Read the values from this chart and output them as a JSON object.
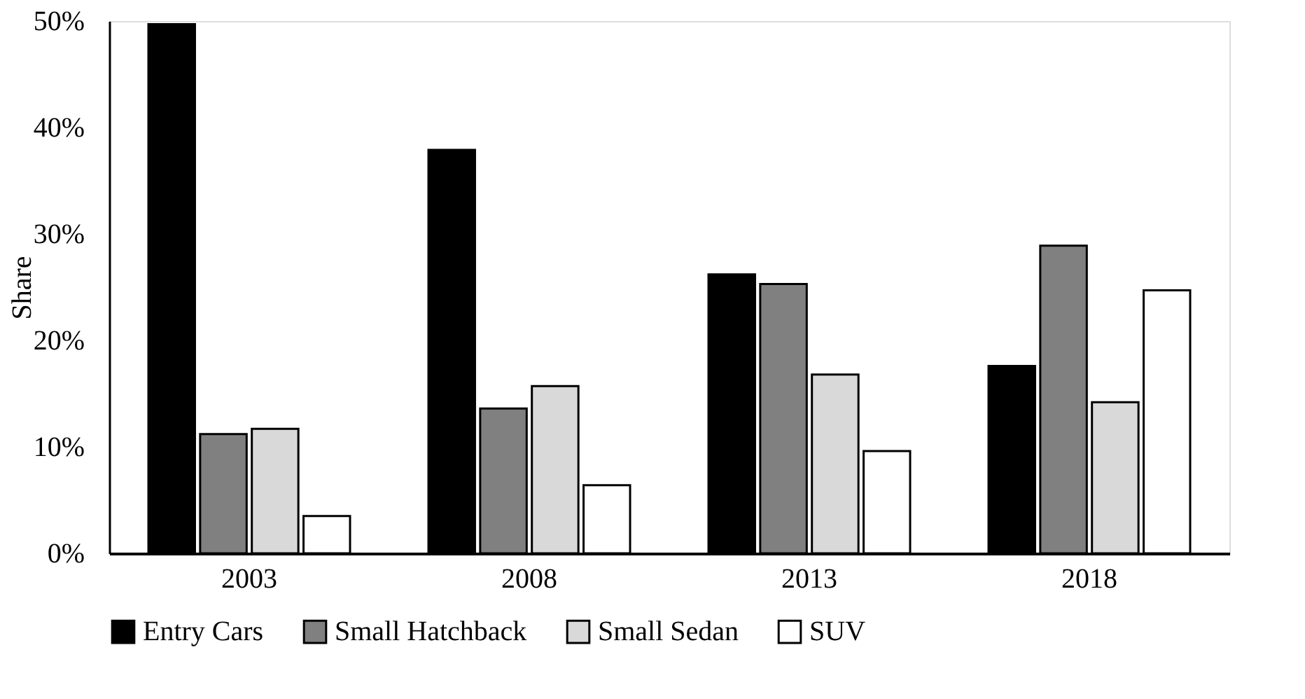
{
  "chart_data": {
    "type": "bar",
    "ylabel": "Share",
    "categories": [
      "2003",
      "2008",
      "2013",
      "2018"
    ],
    "series": [
      {
        "name": "Entry Cars",
        "color": "#000000",
        "values": [
          49.7,
          37.9,
          26.2,
          17.6
        ]
      },
      {
        "name": "Small Hatchback",
        "color": "#808080",
        "values": [
          11.2,
          13.6,
          25.3,
          28.9
        ]
      },
      {
        "name": "Small Sedan",
        "color": "#d9d9d9",
        "values": [
          11.7,
          15.7,
          16.8,
          14.2
        ]
      },
      {
        "name": "SUV",
        "color": "#ffffff",
        "values": [
          3.5,
          6.4,
          9.6,
          24.7
        ]
      }
    ],
    "ylim": [
      0,
      50
    ],
    "yticks": [
      {
        "value": 0,
        "label": "0%"
      },
      {
        "value": 10,
        "label": "10%"
      },
      {
        "value": 20,
        "label": "20%"
      },
      {
        "value": 30,
        "label": "30%"
      },
      {
        "value": 40,
        "label": "40%"
      },
      {
        "value": 50,
        "label": "50%"
      }
    ],
    "grid": false,
    "legend": "bottom"
  }
}
